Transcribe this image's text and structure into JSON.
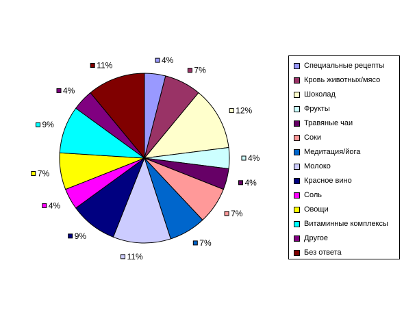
{
  "chart_data": {
    "type": "pie",
    "slices": [
      {
        "name": "Специальные рецепты",
        "value": 4,
        "label": "4%",
        "color": "#9999ff"
      },
      {
        "name": "Кровь животных/мясо",
        "value": 7,
        "label": "7%",
        "color": "#993366"
      },
      {
        "name": "Шоколад",
        "value": 12,
        "label": "12%",
        "color": "#ffffcc"
      },
      {
        "name": "Фрукты",
        "value": 4,
        "label": "4%",
        "color": "#ccffff"
      },
      {
        "name": "Травяные чаи",
        "value": 4,
        "label": "4%",
        "color": "#660066"
      },
      {
        "name": "Соки",
        "value": 7,
        "label": "7%",
        "color": "#ff9999"
      },
      {
        "name": "Медитация/йога",
        "value": 7,
        "label": "7%",
        "color": "#0066cc"
      },
      {
        "name": "Молоко",
        "value": 11,
        "label": "11%",
        "color": "#ccccff"
      },
      {
        "name": "Красное вино",
        "value": 9,
        "label": "9%",
        "color": "#000080"
      },
      {
        "name": "Соль",
        "value": 4,
        "label": "4%",
        "color": "#ff00ff"
      },
      {
        "name": "Овощи",
        "value": 7,
        "label": "7%",
        "color": "#ffff00"
      },
      {
        "name": "Витаминные комплексы",
        "value": 9,
        "label": "9%",
        "color": "#00ffff"
      },
      {
        "name": "Другое",
        "value": 4,
        "label": "4%",
        "color": "#800080"
      },
      {
        "name": "Без ответа",
        "value": 11,
        "label": "11%",
        "color": "#800000"
      }
    ],
    "legend_position": "right"
  }
}
